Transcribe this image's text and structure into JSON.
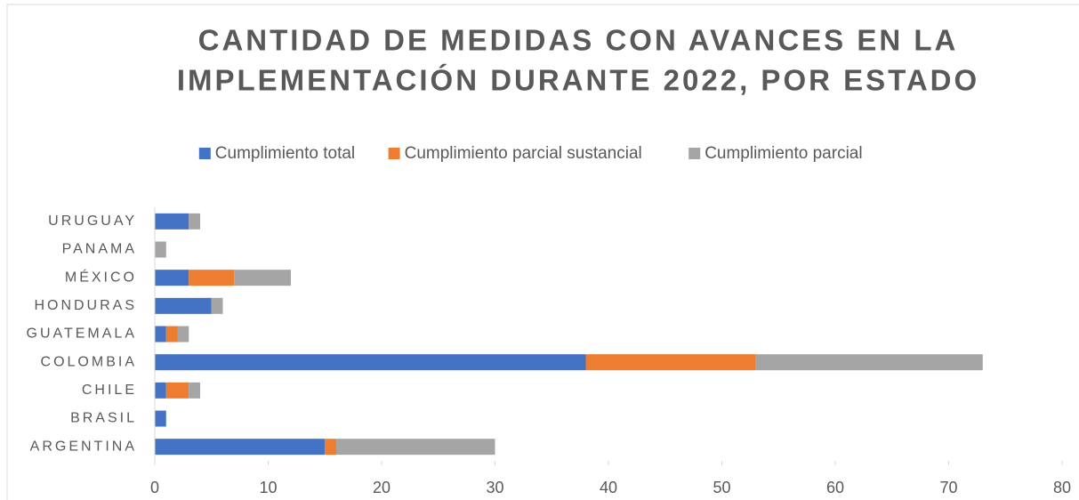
{
  "chart_data": {
    "type": "stacked_barh",
    "title": [
      "CANTIDAD DE MEDIDAS CON AVANCES EN LA",
      "IMPLEMENTACIÓN DURANTE 2022, POR ESTADO"
    ],
    "categories": [
      "ARGENTINA",
      "BRASIL",
      "CHILE",
      "COLOMBIA",
      "GUATEMALA",
      "HONDURAS",
      "MÉXICO",
      "PANAMA",
      "URUGUAY"
    ],
    "series": [
      {
        "name": "Cumplimiento total",
        "color": "#4472c4",
        "values": [
          15,
          1,
          1,
          38,
          1,
          5,
          3,
          0,
          3
        ]
      },
      {
        "name": "Cumplimiento parcial sustancial",
        "color": "#ed7d31",
        "values": [
          1,
          0,
          2,
          15,
          1,
          0,
          4,
          0,
          0
        ]
      },
      {
        "name": "Cumplimiento parcial",
        "color": "#a5a5a5",
        "values": [
          14,
          0,
          1,
          20,
          1,
          1,
          5,
          1,
          1
        ]
      }
    ],
    "xlim": [
      0,
      80
    ],
    "xticks": [
      0,
      10,
      20,
      30,
      40,
      50,
      60,
      70,
      80
    ],
    "legend": "top"
  }
}
